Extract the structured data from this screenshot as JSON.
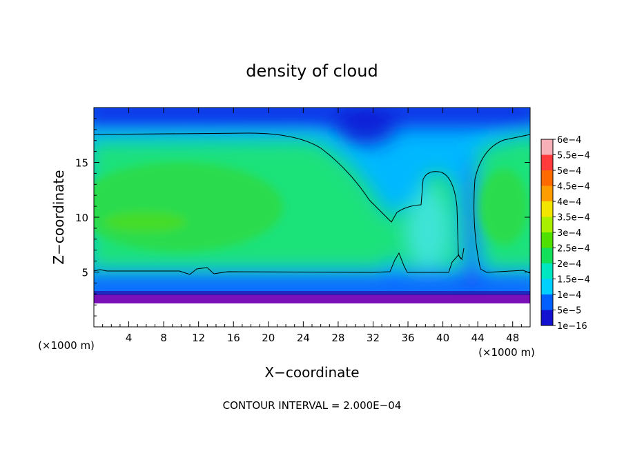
{
  "chart_data": {
    "type": "heatmap",
    "title": "density of cloud",
    "xlabel": "X−coordinate",
    "ylabel": "Z−coordinate",
    "x_unit_left": "(×1000 m)",
    "x_unit_right": "(×1000 m)",
    "footer": "CONTOUR INTERVAL = 2.000E−04",
    "xlim": [
      0,
      50
    ],
    "ylim": [
      0,
      20
    ],
    "x_ticks": [
      4,
      8,
      12,
      16,
      20,
      24,
      28,
      32,
      36,
      40,
      44,
      48
    ],
    "x_tick_labels": [
      "4",
      "8",
      "12",
      "16",
      "20",
      "24",
      "28",
      "32",
      "36",
      "40",
      "44",
      "48"
    ],
    "y_ticks": [
      5,
      10,
      15
    ],
    "y_tick_labels": [
      "5",
      "10",
      "15"
    ],
    "contour_level": 0.0002,
    "colorbar": {
      "labels": [
        "6e−4",
        "5.5e−4",
        "5e−4",
        "4.5e−4",
        "4e−4",
        "3.5e−4",
        "3e−4",
        "2.5e−4",
        "2e−4",
        "1.5e−4",
        "1e−4",
        "5e−5",
        "1e−16"
      ],
      "colors": [
        "#f7b0b8",
        "#ff3b3b",
        "#ff6a00",
        "#ff9d00",
        "#f2e600",
        "#a8ef00",
        "#4fe000",
        "#12e05a",
        "#00e6c0",
        "#00d0ff",
        "#0060ff",
        "#1212d0",
        "#6a00b0"
      ]
    },
    "field": {
      "description_levels": {
        "core_max": 0.00028,
        "cloud_top_z": 17.5,
        "cloud_base_z": 5.0,
        "downdraft_x": 33,
        "updraft_x": 43,
        "ground_layer_top_z": 2.2
      }
    }
  }
}
